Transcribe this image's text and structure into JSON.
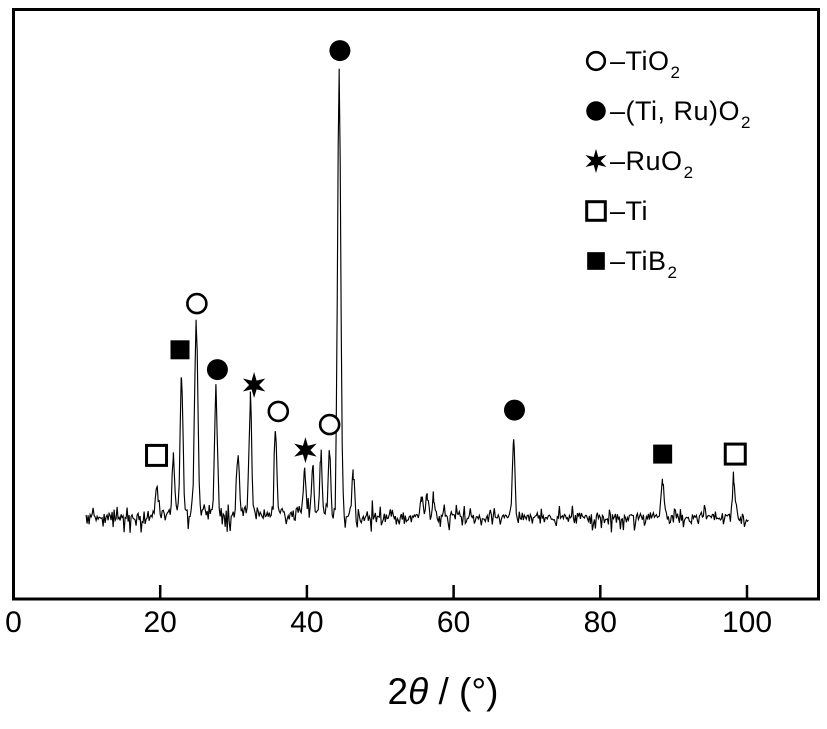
{
  "colors": {
    "background": "#ffffff",
    "foreground": "#000000"
  },
  "chart_data": {
    "type": "line",
    "description": "XRD diffraction pattern: noisy intensity trace with labeled peaks",
    "xlabel_parts": {
      "pre": "2",
      "italic": "θ",
      "post": " / (°)"
    },
    "ylabel": "",
    "title": "",
    "x_ticks": [
      0,
      20,
      40,
      60,
      80,
      100
    ],
    "xlim": [
      0,
      110
    ],
    "x_data_range": [
      9.9,
      100.3
    ],
    "ylim_intensity": [
      -4,
      115
    ],
    "grid": false,
    "baseline_intensity": 0,
    "noise": {
      "typical_amplitude": 1.2,
      "spike_amplitude": 3.2,
      "cluster_boost_range": [
        12,
        50
      ],
      "cluster_boost_factor": 1.45
    },
    "background_hump": {
      "center": 30,
      "sigma": 9,
      "amplitude": 1.2
    },
    "peaks": [
      {
        "two_theta": 19.6,
        "intensity": 8.0,
        "sigma": 0.18
      },
      {
        "two_theta": 21.8,
        "intensity": 13.5,
        "sigma": 0.18
      },
      {
        "two_theta": 22.9,
        "intensity": 32.5,
        "sigma": 0.18
      },
      {
        "two_theta": 24.9,
        "intensity": 43.0,
        "sigma": 0.22
      },
      {
        "two_theta": 27.6,
        "intensity": 28.0,
        "sigma": 0.18
      },
      {
        "two_theta": 30.6,
        "intensity": 13.0,
        "sigma": 0.18
      },
      {
        "two_theta": 32.3,
        "intensity": 26.0,
        "sigma": 0.18
      },
      {
        "two_theta": 35.7,
        "intensity": 19.0,
        "sigma": 0.18
      },
      {
        "two_theta": 39.7,
        "intensity": 10.0,
        "sigma": 0.18
      },
      {
        "two_theta": 40.8,
        "intensity": 10.5,
        "sigma": 0.18
      },
      {
        "two_theta": 41.9,
        "intensity": 13.2,
        "sigma": 0.18
      },
      {
        "two_theta": 43.1,
        "intensity": 15.0,
        "sigma": 0.18
      },
      {
        "two_theta": 44.4,
        "intensity": 100.0,
        "sigma": 0.22
      },
      {
        "two_theta": 46.3,
        "intensity": 10.0,
        "sigma": 0.18
      },
      {
        "two_theta": 55.6,
        "intensity": 4.0,
        "sigma": 0.18
      },
      {
        "two_theta": 56.4,
        "intensity": 6.0,
        "sigma": 0.18
      },
      {
        "two_theta": 57.3,
        "intensity": 4.5,
        "sigma": 0.18
      },
      {
        "two_theta": 68.2,
        "intensity": 17.5,
        "sigma": 0.18
      },
      {
        "two_theta": 88.5,
        "intensity": 8.6,
        "sigma": 0.2
      },
      {
        "two_theta": 98.2,
        "intensity": 7.7,
        "sigma": 0.2
      }
    ],
    "peak_markers": [
      {
        "symbol": "square-open",
        "phase": "Ti",
        "two_theta": 19.5,
        "label_height": 14.0
      },
      {
        "symbol": "square-filled",
        "phase": "TiB2",
        "two_theta": 22.7,
        "label_height": 38.0
      },
      {
        "symbol": "circle-open",
        "phase": "TiO2",
        "two_theta": 25.0,
        "label_height": 48.5
      },
      {
        "symbol": "circle-filled",
        "phase": "(Ti, Ru)O2",
        "two_theta": 27.8,
        "label_height": 33.5
      },
      {
        "symbol": "star",
        "phase": "RuO2",
        "two_theta": 32.8,
        "label_height": 30.0
      },
      {
        "symbol": "circle-open",
        "phase": "TiO2",
        "two_theta": 36.1,
        "label_height": 24.0
      },
      {
        "symbol": "star",
        "phase": "RuO2",
        "two_theta": 39.8,
        "label_height": 15.2
      },
      {
        "symbol": "circle-open",
        "phase": "TiO2",
        "two_theta": 43.1,
        "label_height": 21.0
      },
      {
        "symbol": "circle-filled",
        "phase": "(Ti, Ru)O2",
        "two_theta": 44.5,
        "label_height": 106.0
      },
      {
        "symbol": "circle-filled",
        "phase": "(Ti, Ru)O2",
        "two_theta": 68.3,
        "label_height": 24.3
      },
      {
        "symbol": "square-filled",
        "phase": "TiB2",
        "two_theta": 88.5,
        "label_height": 14.3
      },
      {
        "symbol": "square-open",
        "phase": "Ti",
        "two_theta": 98.4,
        "label_height": 14.3
      }
    ],
    "legend_separator": "–",
    "legend": [
      {
        "symbol": "circle-open",
        "formula_main": "TiO",
        "formula_sub": "2"
      },
      {
        "symbol": "circle-filled",
        "formula_main": "(Ti, Ru)O",
        "formula_sub": "2"
      },
      {
        "symbol": "star",
        "formula_main": "RuO",
        "formula_sub": "2"
      },
      {
        "symbol": "square-open",
        "formula_main": "Ti",
        "formula_sub": ""
      },
      {
        "symbol": "square-filled",
        "formula_main": "TiB",
        "formula_sub": "2"
      }
    ]
  }
}
